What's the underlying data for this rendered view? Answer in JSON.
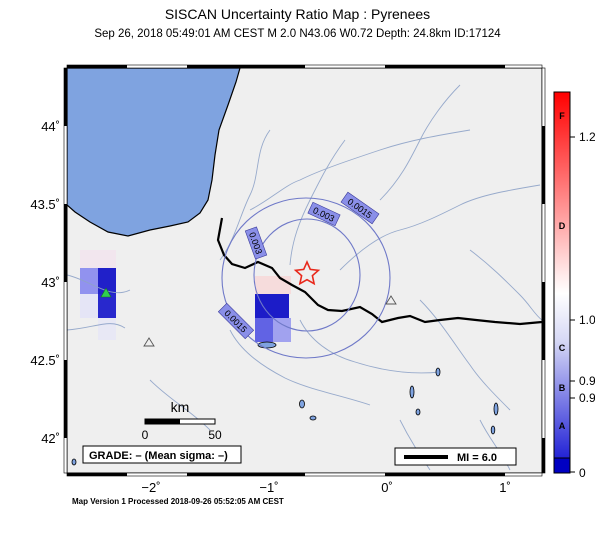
{
  "header": {
    "title": "SISCAN Uncertainty Ratio Map : Pyrenees",
    "subtitle": "Sep 26, 2018 05:49:01 AM CEST   M 2.0   N43.06 W0.72   Depth: 24.8km   ID:17124"
  },
  "map": {
    "lat_ticks": [
      {
        "value": 44,
        "label": "44˚"
      },
      {
        "value": 43.5,
        "label": "43.5˚"
      },
      {
        "value": 43,
        "label": "43˚"
      },
      {
        "value": 42.5,
        "label": "42.5˚"
      },
      {
        "value": 42,
        "label": "42˚"
      }
    ],
    "lon_ticks": [
      {
        "value": -2,
        "label": "−2˚"
      },
      {
        "value": -1,
        "label": "−1˚"
      },
      {
        "value": 0,
        "label": "0˚"
      },
      {
        "value": 1,
        "label": "1˚"
      }
    ],
    "contour_labels": [
      "0.0015",
      "0.003",
      "0.003",
      "0.0015"
    ],
    "scale_bar": {
      "unit": "km",
      "min_label": "0",
      "max_label": "50"
    },
    "grade_label": "GRADE: – (Mean sigma: –)",
    "mi_legend": "MI = 6.0",
    "colors": {
      "sea": "#7fa3e0",
      "land": "#efefef",
      "border": "#000000",
      "contour": "#6f79c8",
      "star": "#e8291c",
      "station": "#2fce4f"
    }
  },
  "colorbar": {
    "letters": [
      "F",
      "D",
      "C",
      "B",
      "A"
    ],
    "values": [
      "1.2",
      "1.0",
      "0.9",
      "0.9",
      "0"
    ]
  },
  "footer": {
    "text": "Map Version 1 Processed 2018-09-26 05:52:05 AM CEST"
  }
}
